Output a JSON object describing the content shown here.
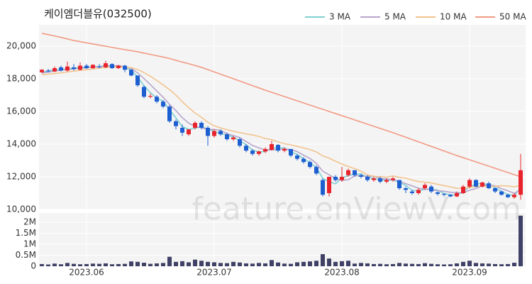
{
  "chart_data": [
    {
      "type": "candlestick",
      "title": "케이엠더블유(032500)",
      "categories": [
        null,
        null,
        null,
        null,
        null,
        null,
        null,
        "2023.06",
        null,
        null,
        null,
        null,
        null,
        null,
        null,
        null,
        null,
        null,
        null,
        null,
        null,
        null,
        null,
        null,
        null,
        null,
        null,
        "2023.07",
        null,
        null,
        null,
        null,
        null,
        null,
        null,
        null,
        null,
        null,
        null,
        null,
        null,
        null,
        null,
        null,
        null,
        null,
        null,
        "2023.08",
        null,
        null,
        null,
        null,
        null,
        null,
        null,
        null,
        null,
        null,
        null,
        null,
        null,
        null,
        null,
        null,
        null,
        null,
        null,
        "2023.09",
        null,
        null,
        null,
        null,
        null,
        null,
        null,
        null
      ],
      "open": [
        18400,
        18500,
        18450,
        18700,
        18500,
        18700,
        18550,
        18800,
        18650,
        18750,
        18700,
        18900,
        18650,
        18800,
        18550,
        18200,
        17500,
        16900,
        16900,
        16600,
        16300,
        15400,
        15000,
        14600,
        15000,
        15300,
        15000,
        14500,
        14800,
        14600,
        14300,
        14300,
        13900,
        13600,
        13400,
        13550,
        13650,
        13950,
        13600,
        13700,
        13300,
        13100,
        12900,
        12600,
        11800,
        11000,
        12000,
        11800,
        12100,
        12400,
        12100,
        12000,
        11800,
        11900,
        11700,
        11800,
        11800,
        11300,
        11100,
        11000,
        11300,
        11400,
        11050,
        10950,
        10900,
        10800,
        11000,
        11400,
        11800,
        11400,
        11600,
        11300,
        11100,
        10900,
        10750,
        10900
      ],
      "high": [
        18600,
        18600,
        18750,
        18800,
        19050,
        18900,
        19000,
        18900,
        18900,
        18900,
        19100,
        18950,
        18850,
        18850,
        18600,
        18200,
        17600,
        17100,
        17000,
        16700,
        16400,
        15500,
        15200,
        14900,
        15400,
        15400,
        15100,
        14900,
        14900,
        14700,
        14500,
        14400,
        14000,
        13700,
        13600,
        13800,
        14200,
        14000,
        13800,
        13700,
        13400,
        13200,
        13000,
        12700,
        11900,
        12000,
        12100,
        12600,
        12500,
        12400,
        12200,
        12100,
        12000,
        12000,
        11900,
        12000,
        11800,
        11400,
        11200,
        11300,
        11600,
        11500,
        11100,
        11000,
        10950,
        11100,
        11500,
        11900,
        11850,
        11700,
        11700,
        11350,
        11150,
        10950,
        11000,
        13400
      ],
      "low": [
        18350,
        18400,
        18400,
        18450,
        18450,
        18500,
        18500,
        18600,
        18600,
        18650,
        18650,
        18600,
        18600,
        18400,
        18150,
        17500,
        16800,
        16800,
        16500,
        16200,
        15300,
        14900,
        14500,
        14500,
        14900,
        14900,
        13900,
        14400,
        14500,
        14200,
        14200,
        13800,
        13500,
        13300,
        13300,
        13450,
        13600,
        13500,
        13500,
        13200,
        13000,
        12800,
        12500,
        12100,
        10800,
        10800,
        11700,
        11700,
        12000,
        12000,
        11900,
        11700,
        11700,
        11600,
        11600,
        11700,
        11200,
        11000,
        10900,
        10900,
        11200,
        11000,
        10850,
        10800,
        10750,
        10750,
        10950,
        11300,
        11350,
        11350,
        11250,
        11000,
        10850,
        10700,
        10650,
        10600
      ],
      "close": [
        18550,
        18450,
        18650,
        18500,
        18750,
        18600,
        18800,
        18650,
        18850,
        18700,
        18950,
        18650,
        18800,
        18550,
        18200,
        17600,
        16900,
        16950,
        16600,
        16300,
        15400,
        15100,
        14700,
        14900,
        15300,
        15000,
        14500,
        14800,
        14600,
        14300,
        14400,
        13900,
        13600,
        13400,
        13550,
        13700,
        14000,
        13600,
        13700,
        13300,
        13100,
        12900,
        12600,
        12200,
        10900,
        12000,
        11800,
        12000,
        12400,
        12100,
        12000,
        11800,
        11900,
        11700,
        11800,
        11900,
        11300,
        11200,
        11000,
        11200,
        11500,
        11100,
        10950,
        10900,
        10800,
        11000,
        11400,
        11800,
        11400,
        11650,
        11300,
        11100,
        10900,
        10750,
        10900,
        12400
      ],
      "up_color": "#e8232b",
      "down_color": "#1d5fd1",
      "series": [
        {
          "name": "3 MA",
          "color": "#7fd0d4",
          "values": [
            18400,
            18480,
            18550,
            18530,
            18630,
            18620,
            18720,
            18680,
            18770,
            18730,
            18830,
            18770,
            18800,
            18670,
            18520,
            18120,
            17570,
            17150,
            16820,
            16620,
            16100,
            15600,
            15070,
            14900,
            14970,
            15070,
            14930,
            14770,
            14630,
            14570,
            14430,
            14200,
            13970,
            13630,
            13520,
            13550,
            13750,
            13770,
            13770,
            13530,
            13370,
            13100,
            12870,
            12570,
            11900,
            11700,
            11570,
            11930,
            12070,
            12170,
            12170,
            11970,
            11900,
            11800,
            11800,
            11800,
            11670,
            11470,
            11170,
            11130,
            11230,
            11270,
            11180,
            10980,
            10880,
            10900,
            11070,
            11400,
            11530,
            11620,
            11450,
            11350,
            11100,
            10920,
            10850,
            11350
          ]
        },
        {
          "name": "5 MA",
          "color": "#b7a4cc",
          "values": [
            18350,
            18400,
            18470,
            18520,
            18580,
            18590,
            18660,
            18660,
            18730,
            18740,
            18790,
            18770,
            18810,
            18730,
            18630,
            18360,
            18010,
            17640,
            17250,
            16870,
            16430,
            16050,
            15620,
            15280,
            15080,
            15000,
            14900,
            14900,
            14840,
            14640,
            14520,
            14400,
            14160,
            13920,
            13770,
            13630,
            13650,
            13650,
            13710,
            13660,
            13540,
            13320,
            13120,
            12820,
            12340,
            12120,
            11900,
            11780,
            11820,
            12060,
            12060,
            12020,
            12040,
            11900,
            11860,
            11820,
            11720,
            11580,
            11440,
            11300,
            11240,
            11200,
            11150,
            11110,
            11050,
            11030,
            11010,
            11180,
            11280,
            11450,
            11510,
            11450,
            11270,
            11140,
            10990,
            11210
          ]
        },
        {
          "name": "10 MA",
          "color": "#f2c48f",
          "values": [
            18250,
            18280,
            18320,
            18360,
            18420,
            18460,
            18520,
            18550,
            18600,
            18650,
            18700,
            18710,
            18730,
            18720,
            18680,
            18570,
            18380,
            18150,
            17900,
            17620,
            17340,
            17000,
            16600,
            16230,
            15900,
            15640,
            15340,
            15120,
            14990,
            14880,
            14790,
            14710,
            14620,
            14560,
            14470,
            14340,
            14270,
            14140,
            14020,
            13960,
            13860,
            13770,
            13660,
            13520,
            13280,
            13140,
            12950,
            12780,
            12630,
            12500,
            12340,
            12120,
            12030,
            12000,
            11970,
            12050,
            11970,
            11920,
            11800,
            11710,
            11670,
            11620,
            11540,
            11460,
            11380,
            11290,
            11300,
            11360,
            11400,
            11430,
            11410,
            11420,
            11460,
            11430,
            11390,
            11470
          ]
        },
        {
          "name": "50 MA",
          "color": "#f29a84",
          "values": [
            20780,
            20700,
            20620,
            20530,
            20440,
            20340,
            20270,
            20200,
            20130,
            20060,
            19990,
            19920,
            19850,
            19780,
            19720,
            19650,
            19570,
            19490,
            19410,
            19330,
            19240,
            19130,
            19020,
            18920,
            18810,
            18700,
            18560,
            18420,
            18280,
            18140,
            18000,
            17860,
            17720,
            17580,
            17440,
            17300,
            17170,
            17040,
            16910,
            16780,
            16650,
            16520,
            16390,
            16260,
            16130,
            16000,
            15870,
            15740,
            15610,
            15480,
            15350,
            15220,
            15090,
            14960,
            14830,
            14700,
            14560,
            14420,
            14280,
            14140,
            14000,
            13860,
            13720,
            13580,
            13440,
            13300,
            13170,
            13040,
            12910,
            12780,
            12650,
            12520,
            12390,
            12260,
            12130,
            12000
          ]
        }
      ],
      "ylim": [
        10000,
        21300
      ],
      "yticks": [
        {
          "value": 10000,
          "label": "10,000"
        },
        {
          "value": 12000,
          "label": "12,000"
        },
        {
          "value": 14000,
          "label": "14,000"
        },
        {
          "value": 16000,
          "label": "16,000"
        },
        {
          "value": 18000,
          "label": "18,000"
        },
        {
          "value": 20000,
          "label": "20,000"
        }
      ],
      "grid": true,
      "legend": "top-right"
    },
    {
      "type": "bar",
      "color": "#3f4266",
      "values": [
        100000,
        80000,
        120000,
        90000,
        150000,
        110000,
        90000,
        100000,
        120000,
        110000,
        130000,
        90000,
        100000,
        110000,
        220000,
        200000,
        160000,
        110000,
        130000,
        150000,
        430000,
        200000,
        230000,
        180000,
        300000,
        250000,
        200000,
        180000,
        150000,
        140000,
        200000,
        170000,
        130000,
        120000,
        150000,
        130000,
        280000,
        170000,
        120000,
        110000,
        180000,
        200000,
        220000,
        250000,
        550000,
        350000,
        200000,
        230000,
        250000,
        120000,
        150000,
        130000,
        100000,
        110000,
        90000,
        100000,
        150000,
        120000,
        110000,
        100000,
        140000,
        110000,
        90000,
        80000,
        90000,
        130000,
        200000,
        250000,
        150000,
        130000,
        120000,
        100000,
        90000,
        100000,
        160000,
        2300000
      ],
      "ylim": [
        0,
        2420000
      ],
      "yticks": [
        0,
        {
          "value": 500000,
          "label": "0.5M"
        },
        {
          "value": 1000000,
          "label": "1M"
        },
        {
          "value": 1500000,
          "label": "1.5M"
        },
        {
          "value": 2000000,
          "label": "2M"
        }
      ],
      "grid": true
    }
  ],
  "watermark": "feature.enViewV.com"
}
